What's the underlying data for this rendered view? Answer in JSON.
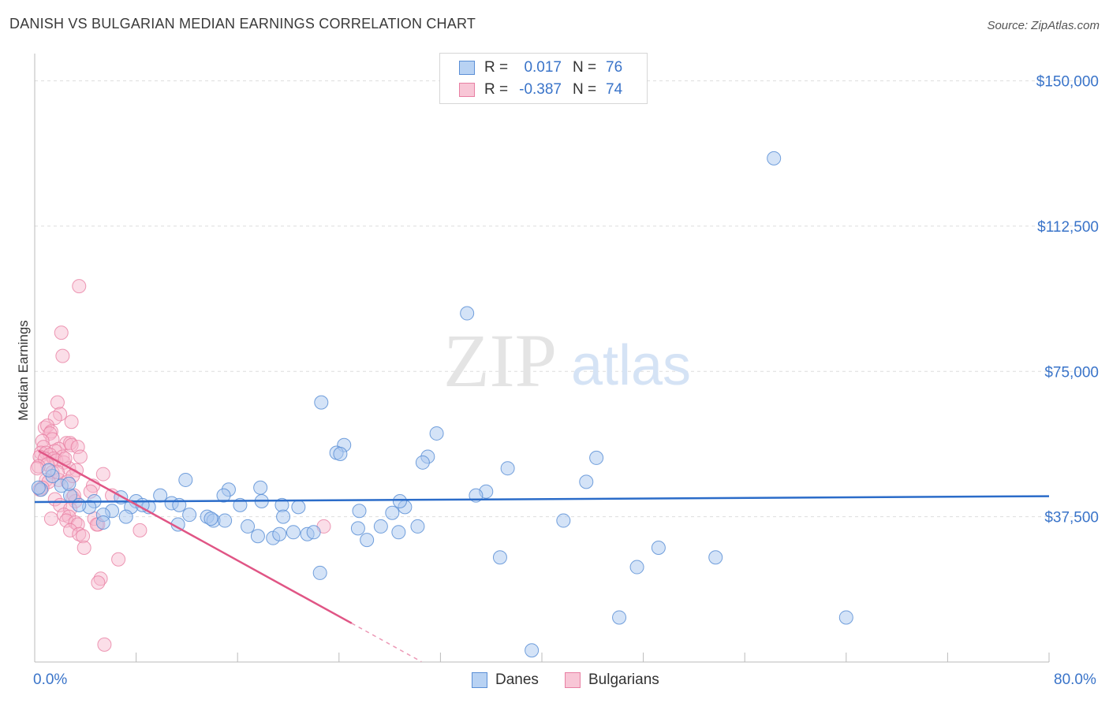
{
  "title": "DANISH VS BULGARIAN MEDIAN EARNINGS CORRELATION CHART",
  "source": "Source: ZipAtlas.com",
  "watermark": {
    "zip": "ZIP",
    "atlas": "atlas"
  },
  "colors": {
    "danes_fill": "#a9c8ef",
    "danes_stroke": "#5b8fd6",
    "danes_line": "#2b6cc9",
    "bulgarians_fill": "#f6b6cb",
    "bulgarians_stroke": "#e87fa3",
    "bulgarians_line": "#e05585",
    "tick_text": "#3a74c9",
    "grid": "#dddddd"
  },
  "legend": {
    "danes": {
      "r_label": "R =",
      "r_value": "0.017",
      "n_label": "N =",
      "n_value": "76"
    },
    "bulgarians": {
      "r_label": "R =",
      "r_value": "-0.387",
      "n_label": "N =",
      "n_value": "74"
    }
  },
  "bottom_legend": {
    "danes": "Danes",
    "bulgarians": "Bulgarians"
  },
  "chart_data": {
    "type": "scatter",
    "title": "DANISH VS BULGARIAN MEDIAN EARNINGS CORRELATION CHART",
    "xlabel": "",
    "ylabel": "Median Earnings",
    "xlim": [
      0,
      80
    ],
    "ylim": [
      0,
      155000
    ],
    "x_tick_labels": [
      "0.0%",
      "80.0%"
    ],
    "y_ticks": [
      {
        "value": 37500,
        "label": "$37,500"
      },
      {
        "value": 75000,
        "label": "$75,000"
      },
      {
        "value": 112500,
        "label": "$112,500"
      },
      {
        "value": 150000,
        "label": "$150,000"
      }
    ],
    "grid": "horizontal-dashed",
    "legend_position": "top-center",
    "series": [
      {
        "name": "Danes",
        "trend": {
          "x0": 0,
          "y0": 41300,
          "x1": 80,
          "y1": 42800,
          "dashed_from": null
        },
        "points": [
          [
            58.3,
            130000
          ],
          [
            34.1,
            90000
          ],
          [
            22.6,
            67000
          ],
          [
            31.7,
            59000
          ],
          [
            24.4,
            56000
          ],
          [
            23.8,
            54000
          ],
          [
            24.1,
            53700
          ],
          [
            31.0,
            53000
          ],
          [
            30.6,
            51500
          ],
          [
            44.3,
            52700
          ],
          [
            37.3,
            50000
          ],
          [
            11.9,
            47000
          ],
          [
            43.5,
            46500
          ],
          [
            35.6,
            44000
          ],
          [
            34.8,
            43000
          ],
          [
            17.8,
            45000
          ],
          [
            15.3,
            44500
          ],
          [
            14.9,
            43000
          ],
          [
            9.9,
            43000
          ],
          [
            6.8,
            42500
          ],
          [
            8.0,
            41500
          ],
          [
            10.8,
            41000
          ],
          [
            11.4,
            40500
          ],
          [
            9.0,
            40000
          ],
          [
            7.6,
            40000
          ],
          [
            17.9,
            41500
          ],
          [
            16.2,
            40500
          ],
          [
            4.7,
            41500
          ],
          [
            4.3,
            40000
          ],
          [
            6.1,
            39000
          ],
          [
            5.4,
            38000
          ],
          [
            7.2,
            37500
          ],
          [
            12.2,
            38000
          ],
          [
            13.6,
            37500
          ],
          [
            14.1,
            36500
          ],
          [
            13.9,
            37000
          ],
          [
            15.0,
            36500
          ],
          [
            5.4,
            36000
          ],
          [
            2.8,
            43000
          ],
          [
            2.1,
            45500
          ],
          [
            2.7,
            46000
          ],
          [
            1.4,
            48000
          ],
          [
            1.1,
            49500
          ],
          [
            19.5,
            40500
          ],
          [
            20.8,
            40000
          ],
          [
            25.6,
            39000
          ],
          [
            28.2,
            38500
          ],
          [
            29.2,
            40000
          ],
          [
            28.8,
            41500
          ],
          [
            16.8,
            35000
          ],
          [
            17.6,
            32500
          ],
          [
            18.8,
            32000
          ],
          [
            19.3,
            33000
          ],
          [
            20.4,
            33500
          ],
          [
            21.5,
            33000
          ],
          [
            22.0,
            33500
          ],
          [
            25.5,
            34500
          ],
          [
            26.2,
            31500
          ],
          [
            27.3,
            35000
          ],
          [
            28.7,
            33500
          ],
          [
            30.2,
            35000
          ],
          [
            36.7,
            27000
          ],
          [
            41.7,
            36500
          ],
          [
            49.2,
            29500
          ],
          [
            47.5,
            24500
          ],
          [
            53.7,
            27000
          ],
          [
            22.5,
            23000
          ],
          [
            46.1,
            11500
          ],
          [
            64.0,
            11500
          ],
          [
            39.2,
            3000
          ],
          [
            0.5,
            44500
          ],
          [
            0.3,
            45000
          ],
          [
            19.6,
            37500
          ],
          [
            11.3,
            35500
          ],
          [
            8.5,
            40500
          ],
          [
            3.5,
            40500
          ]
        ]
      },
      {
        "name": "Bulgarians",
        "trend": {
          "x0": 0.3,
          "y0": 54500,
          "x1": 25,
          "y1": 10000,
          "dashed_from": 25,
          "dashed_to": 30.5
        },
        "points": [
          [
            3.5,
            97000
          ],
          [
            2.1,
            85000
          ],
          [
            2.2,
            79000
          ],
          [
            1.8,
            67000
          ],
          [
            2.0,
            64000
          ],
          [
            1.6,
            63000
          ],
          [
            2.9,
            62000
          ],
          [
            0.8,
            60500
          ],
          [
            1.0,
            61000
          ],
          [
            1.3,
            59500
          ],
          [
            1.2,
            59000
          ],
          [
            1.4,
            57500
          ],
          [
            0.6,
            57000
          ],
          [
            2.5,
            56500
          ],
          [
            2.8,
            56500
          ],
          [
            2.9,
            56000
          ],
          [
            3.4,
            55500
          ],
          [
            0.7,
            55500
          ],
          [
            1.9,
            55000
          ],
          [
            1.6,
            54500
          ],
          [
            0.5,
            54000
          ],
          [
            0.9,
            54000
          ],
          [
            1.2,
            53500
          ],
          [
            2.2,
            53000
          ],
          [
            3.6,
            53000
          ],
          [
            0.4,
            53000
          ],
          [
            0.8,
            52500
          ],
          [
            1.5,
            52500
          ],
          [
            1.7,
            52000
          ],
          [
            2.3,
            51500
          ],
          [
            1.0,
            51000
          ],
          [
            0.3,
            50500
          ],
          [
            2.7,
            50000
          ],
          [
            3.3,
            49500
          ],
          [
            1.4,
            49000
          ],
          [
            5.4,
            48500
          ],
          [
            1.9,
            47000
          ],
          [
            0.9,
            47000
          ],
          [
            2.6,
            46500
          ],
          [
            1.1,
            46500
          ],
          [
            4.6,
            45500
          ],
          [
            0.6,
            45000
          ],
          [
            0.4,
            44500
          ],
          [
            6.1,
            43000
          ],
          [
            3.0,
            42500
          ],
          [
            1.6,
            42000
          ],
          [
            3.2,
            41500
          ],
          [
            2.0,
            40500
          ],
          [
            2.8,
            39500
          ],
          [
            2.3,
            38000
          ],
          [
            1.3,
            37000
          ],
          [
            2.7,
            37500
          ],
          [
            4.7,
            37000
          ],
          [
            2.5,
            36500
          ],
          [
            3.2,
            36000
          ],
          [
            5.0,
            35500
          ],
          [
            3.4,
            35500
          ],
          [
            2.8,
            34000
          ],
          [
            8.3,
            34000
          ],
          [
            22.8,
            35000
          ],
          [
            3.5,
            33000
          ],
          [
            3.8,
            32500
          ],
          [
            3.9,
            29500
          ],
          [
            6.6,
            26500
          ],
          [
            5.2,
            21500
          ],
          [
            5.0,
            20500
          ],
          [
            5.5,
            4500
          ],
          [
            4.9,
            35500
          ],
          [
            3.0,
            48000
          ],
          [
            0.2,
            50000
          ],
          [
            1.8,
            49000
          ],
          [
            4.4,
            44000
          ],
          [
            3.1,
            43000
          ],
          [
            2.4,
            52500
          ]
        ]
      }
    ]
  }
}
